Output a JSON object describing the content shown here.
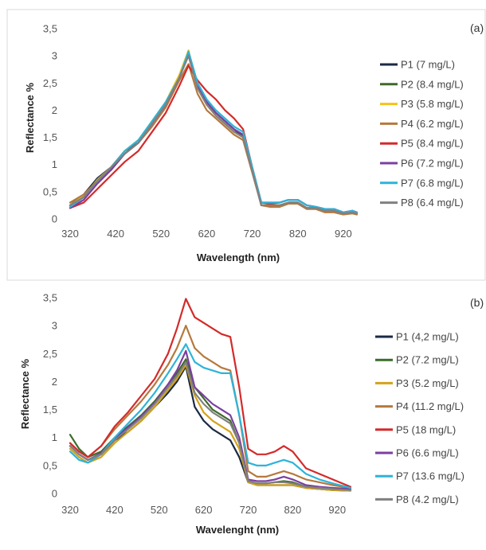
{
  "chart_data": [
    {
      "type": "line",
      "panel_label": "(a)",
      "xlabel": "Wavelength  (nm)",
      "ylabel": "Reflectance %",
      "xlim": [
        320,
        950
      ],
      "ylim": [
        0,
        3.5
      ],
      "x_ticks": [
        320,
        420,
        520,
        620,
        720,
        820,
        920
      ],
      "y_ticks": [
        "0",
        "0,5",
        "1",
        "1,5",
        "2",
        "2,5",
        "3",
        "3,5"
      ],
      "y_tick_values": [
        0,
        0.5,
        1,
        1.5,
        2,
        2.5,
        3,
        3.5
      ],
      "grid": false,
      "legend_position": "right",
      "series": [
        {
          "name": "P1 (7 mg/L)",
          "color": "#1b2a44",
          "x": [
            320,
            350,
            380,
            410,
            440,
            470,
            500,
            530,
            560,
            580,
            600,
            620,
            640,
            660,
            680,
            700,
            720,
            740,
            760,
            780,
            800,
            820,
            840,
            860,
            880,
            900,
            920,
            940,
            950
          ],
          "y": [
            0.25,
            0.45,
            0.75,
            0.95,
            1.25,
            1.4,
            1.75,
            2.1,
            2.6,
            3.05,
            2.45,
            2.15,
            1.95,
            1.8,
            1.65,
            1.5,
            0.9,
            0.25,
            0.25,
            0.25,
            0.3,
            0.3,
            0.2,
            0.2,
            0.15,
            0.15,
            0.1,
            0.12,
            0.1
          ]
        },
        {
          "name": "P2 (8.4 mg/L)",
          "color": "#3d6b2a",
          "x": [
            320,
            350,
            380,
            410,
            440,
            470,
            500,
            530,
            560,
            580,
            600,
            620,
            640,
            660,
            680,
            700,
            720,
            740,
            760,
            780,
            800,
            820,
            840,
            860,
            880,
            900,
            920,
            940,
            950
          ],
          "y": [
            0.25,
            0.4,
            0.7,
            0.95,
            1.2,
            1.4,
            1.75,
            2.1,
            2.6,
            3.05,
            2.45,
            2.15,
            1.95,
            1.8,
            1.65,
            1.55,
            0.9,
            0.25,
            0.25,
            0.25,
            0.3,
            0.3,
            0.2,
            0.2,
            0.15,
            0.15,
            0.1,
            0.12,
            0.1
          ]
        },
        {
          "name": "P3 (5.8 mg/L)",
          "color": "#f2c418",
          "x": [
            320,
            350,
            380,
            410,
            440,
            470,
            500,
            530,
            560,
            580,
            600,
            620,
            640,
            660,
            680,
            700,
            720,
            740,
            760,
            780,
            800,
            820,
            840,
            860,
            880,
            900,
            920,
            940,
            950
          ],
          "y": [
            0.25,
            0.42,
            0.72,
            0.95,
            1.25,
            1.45,
            1.8,
            2.15,
            2.65,
            3.1,
            2.4,
            2.1,
            1.9,
            1.75,
            1.6,
            1.5,
            0.9,
            0.25,
            0.25,
            0.25,
            0.3,
            0.3,
            0.2,
            0.2,
            0.15,
            0.15,
            0.1,
            0.12,
            0.1
          ]
        },
        {
          "name": "P4 (6.2 mg/L)",
          "color": "#b5793e",
          "x": [
            320,
            350,
            380,
            410,
            440,
            470,
            500,
            530,
            560,
            580,
            600,
            620,
            640,
            660,
            680,
            700,
            720,
            740,
            760,
            780,
            800,
            820,
            840,
            860,
            880,
            900,
            920,
            940,
            950
          ],
          "y": [
            0.3,
            0.45,
            0.7,
            0.9,
            1.2,
            1.4,
            1.7,
            2.05,
            2.55,
            2.85,
            2.3,
            2.0,
            1.85,
            1.7,
            1.55,
            1.45,
            0.85,
            0.25,
            0.22,
            0.22,
            0.28,
            0.28,
            0.18,
            0.18,
            0.12,
            0.12,
            0.08,
            0.1,
            0.08
          ]
        },
        {
          "name": "P5 (8.4 mg/L)",
          "color": "#d42a2a",
          "x": [
            320,
            350,
            380,
            410,
            440,
            470,
            500,
            530,
            560,
            580,
            600,
            620,
            640,
            660,
            680,
            700,
            720,
            740,
            760,
            780,
            800,
            820,
            840,
            860,
            880,
            900,
            920,
            940,
            950
          ],
          "y": [
            0.2,
            0.3,
            0.55,
            0.8,
            1.05,
            1.25,
            1.6,
            1.95,
            2.45,
            2.82,
            2.55,
            2.35,
            2.2,
            2.0,
            1.85,
            1.65,
            0.95,
            0.3,
            0.28,
            0.3,
            0.35,
            0.35,
            0.25,
            0.22,
            0.18,
            0.18,
            0.12,
            0.15,
            0.12
          ]
        },
        {
          "name": "P6 (7.2 mg/L)",
          "color": "#7b3fa0",
          "x": [
            320,
            350,
            380,
            410,
            440,
            470,
            500,
            530,
            560,
            580,
            600,
            620,
            640,
            660,
            680,
            700,
            720,
            740,
            760,
            780,
            800,
            820,
            840,
            860,
            880,
            900,
            920,
            940,
            950
          ],
          "y": [
            0.2,
            0.35,
            0.65,
            0.9,
            1.2,
            1.4,
            1.75,
            2.1,
            2.6,
            3.05,
            2.45,
            2.15,
            1.95,
            1.8,
            1.65,
            1.55,
            0.9,
            0.3,
            0.3,
            0.3,
            0.35,
            0.35,
            0.25,
            0.22,
            0.18,
            0.18,
            0.12,
            0.15,
            0.12
          ]
        },
        {
          "name": "P7 (6.8 mg/L)",
          "color": "#2eb3d9",
          "x": [
            320,
            350,
            380,
            410,
            440,
            470,
            500,
            530,
            560,
            580,
            600,
            620,
            640,
            660,
            680,
            700,
            720,
            740,
            760,
            780,
            800,
            820,
            840,
            860,
            880,
            900,
            920,
            940,
            950
          ],
          "y": [
            0.22,
            0.4,
            0.7,
            0.95,
            1.25,
            1.45,
            1.8,
            2.15,
            2.6,
            3.08,
            2.5,
            2.2,
            2.0,
            1.85,
            1.7,
            1.6,
            0.95,
            0.3,
            0.3,
            0.3,
            0.35,
            0.35,
            0.25,
            0.22,
            0.18,
            0.18,
            0.12,
            0.15,
            0.12
          ]
        },
        {
          "name": "P8 (6.4 mg/L)",
          "color": "#808080",
          "x": [
            320,
            350,
            380,
            410,
            440,
            470,
            500,
            530,
            560,
            580,
            600,
            620,
            640,
            660,
            680,
            700,
            720,
            740,
            760,
            780,
            800,
            820,
            840,
            860,
            880,
            900,
            920,
            940,
            950
          ],
          "y": [
            0.25,
            0.4,
            0.7,
            0.95,
            1.2,
            1.4,
            1.75,
            2.1,
            2.6,
            3.0,
            2.4,
            2.1,
            1.9,
            1.75,
            1.6,
            1.5,
            0.88,
            0.25,
            0.25,
            0.25,
            0.3,
            0.3,
            0.2,
            0.2,
            0.15,
            0.15,
            0.1,
            0.12,
            0.1
          ]
        }
      ]
    },
    {
      "type": "line",
      "panel_label": "(b)",
      "xlabel": "Wavelenght (nm)",
      "ylabel": "Reflectance %",
      "xlim": [
        320,
        950
      ],
      "ylim": [
        0,
        3.5
      ],
      "x_ticks": [
        320,
        420,
        520,
        620,
        720,
        820,
        920
      ],
      "y_ticks": [
        "0",
        "0,5",
        "1",
        "1,5",
        "2",
        "2,5",
        "3",
        "3,5"
      ],
      "y_tick_values": [
        0,
        0.5,
        1,
        1.5,
        2,
        2.5,
        3,
        3.5
      ],
      "grid": false,
      "legend_position": "right",
      "series": [
        {
          "name": "P1 (4,2 mg/L)",
          "color": "#1b2a44",
          "x": [
            320,
            340,
            360,
            390,
            420,
            450,
            480,
            510,
            540,
            560,
            580,
            600,
            620,
            640,
            660,
            680,
            700,
            720,
            740,
            760,
            780,
            800,
            820,
            850,
            880,
            910,
            950
          ],
          "y": [
            0.85,
            0.7,
            0.6,
            0.7,
            0.95,
            1.1,
            1.3,
            1.55,
            1.8,
            2.0,
            2.27,
            1.55,
            1.3,
            1.15,
            1.05,
            0.95,
            0.65,
            0.2,
            0.15,
            0.15,
            0.15,
            0.15,
            0.15,
            0.1,
            0.08,
            0.06,
            0.05
          ]
        },
        {
          "name": "P2 (7.2 mg/L)",
          "color": "#3d6b2a",
          "x": [
            320,
            340,
            360,
            390,
            420,
            450,
            480,
            510,
            540,
            560,
            580,
            600,
            620,
            640,
            660,
            680,
            700,
            720,
            740,
            760,
            780,
            800,
            820,
            850,
            880,
            910,
            950
          ],
          "y": [
            1.05,
            0.8,
            0.65,
            0.75,
            1.0,
            1.2,
            1.4,
            1.65,
            1.95,
            2.15,
            2.4,
            1.9,
            1.7,
            1.5,
            1.4,
            1.3,
            0.9,
            0.2,
            0.18,
            0.18,
            0.2,
            0.22,
            0.2,
            0.12,
            0.1,
            0.08,
            0.06
          ]
        },
        {
          "name": "P3 (5.2 mg/L)",
          "color": "#d4a21a",
          "x": [
            320,
            340,
            360,
            390,
            420,
            450,
            480,
            510,
            540,
            560,
            580,
            600,
            620,
            640,
            660,
            680,
            700,
            720,
            740,
            760,
            780,
            800,
            820,
            850,
            880,
            910,
            950
          ],
          "y": [
            0.8,
            0.65,
            0.55,
            0.65,
            0.9,
            1.1,
            1.3,
            1.55,
            1.85,
            2.05,
            2.3,
            1.75,
            1.45,
            1.3,
            1.2,
            1.1,
            0.8,
            0.2,
            0.15,
            0.15,
            0.15,
            0.15,
            0.15,
            0.1,
            0.08,
            0.06,
            0.05
          ]
        },
        {
          "name": "P4 (11.2 mg/L)",
          "color": "#b5793e",
          "x": [
            320,
            340,
            360,
            390,
            420,
            450,
            480,
            510,
            540,
            560,
            580,
            600,
            620,
            640,
            660,
            680,
            700,
            720,
            740,
            760,
            780,
            800,
            820,
            850,
            880,
            910,
            950
          ],
          "y": [
            0.9,
            0.75,
            0.65,
            0.85,
            1.15,
            1.4,
            1.65,
            1.95,
            2.3,
            2.6,
            3.0,
            2.6,
            2.45,
            2.35,
            2.25,
            2.2,
            1.4,
            0.4,
            0.3,
            0.3,
            0.35,
            0.4,
            0.35,
            0.25,
            0.2,
            0.15,
            0.1
          ]
        },
        {
          "name": "P5 (18 mg/L)",
          "color": "#d42a2a",
          "x": [
            320,
            340,
            360,
            390,
            420,
            450,
            480,
            510,
            540,
            560,
            580,
            600,
            620,
            640,
            660,
            680,
            700,
            720,
            740,
            760,
            780,
            800,
            820,
            850,
            880,
            910,
            950
          ],
          "y": [
            0.9,
            0.75,
            0.65,
            0.85,
            1.2,
            1.45,
            1.75,
            2.05,
            2.5,
            2.95,
            3.48,
            3.15,
            3.05,
            2.95,
            2.85,
            2.8,
            1.9,
            0.8,
            0.7,
            0.7,
            0.75,
            0.85,
            0.75,
            0.45,
            0.35,
            0.25,
            0.12
          ]
        },
        {
          "name": "P6 (6.6 mg/L)",
          "color": "#7b3fa0",
          "x": [
            320,
            340,
            360,
            390,
            420,
            450,
            480,
            510,
            540,
            560,
            580,
            600,
            620,
            640,
            660,
            680,
            700,
            720,
            740,
            760,
            780,
            800,
            820,
            850,
            880,
            910,
            950
          ],
          "y": [
            0.85,
            0.7,
            0.6,
            0.72,
            0.98,
            1.18,
            1.38,
            1.62,
            1.95,
            2.2,
            2.55,
            1.9,
            1.75,
            1.6,
            1.5,
            1.4,
            1.0,
            0.25,
            0.22,
            0.22,
            0.25,
            0.3,
            0.25,
            0.15,
            0.12,
            0.1,
            0.08
          ]
        },
        {
          "name": "P7 (13.6 mg/L)",
          "color": "#2eb3d9",
          "x": [
            320,
            340,
            360,
            390,
            420,
            450,
            480,
            510,
            540,
            560,
            580,
            600,
            620,
            640,
            660,
            680,
            700,
            720,
            740,
            760,
            780,
            800,
            820,
            850,
            880,
            910,
            950
          ],
          "y": [
            0.75,
            0.6,
            0.55,
            0.7,
            1.0,
            1.25,
            1.5,
            1.8,
            2.15,
            2.4,
            2.67,
            2.35,
            2.25,
            2.2,
            2.15,
            2.15,
            1.4,
            0.55,
            0.5,
            0.5,
            0.55,
            0.6,
            0.55,
            0.35,
            0.25,
            0.18,
            0.1
          ]
        },
        {
          "name": "P8 (4.2 mg/L)",
          "color": "#808080",
          "x": [
            320,
            340,
            360,
            390,
            420,
            450,
            480,
            510,
            540,
            560,
            580,
            600,
            620,
            640,
            660,
            680,
            700,
            720,
            740,
            760,
            780,
            800,
            820,
            850,
            880,
            910,
            950
          ],
          "y": [
            0.85,
            0.7,
            0.6,
            0.7,
            0.95,
            1.15,
            1.35,
            1.6,
            1.9,
            2.1,
            2.35,
            1.8,
            1.6,
            1.45,
            1.35,
            1.25,
            0.9,
            0.22,
            0.18,
            0.18,
            0.2,
            0.2,
            0.18,
            0.12,
            0.1,
            0.08,
            0.06
          ]
        }
      ]
    }
  ]
}
